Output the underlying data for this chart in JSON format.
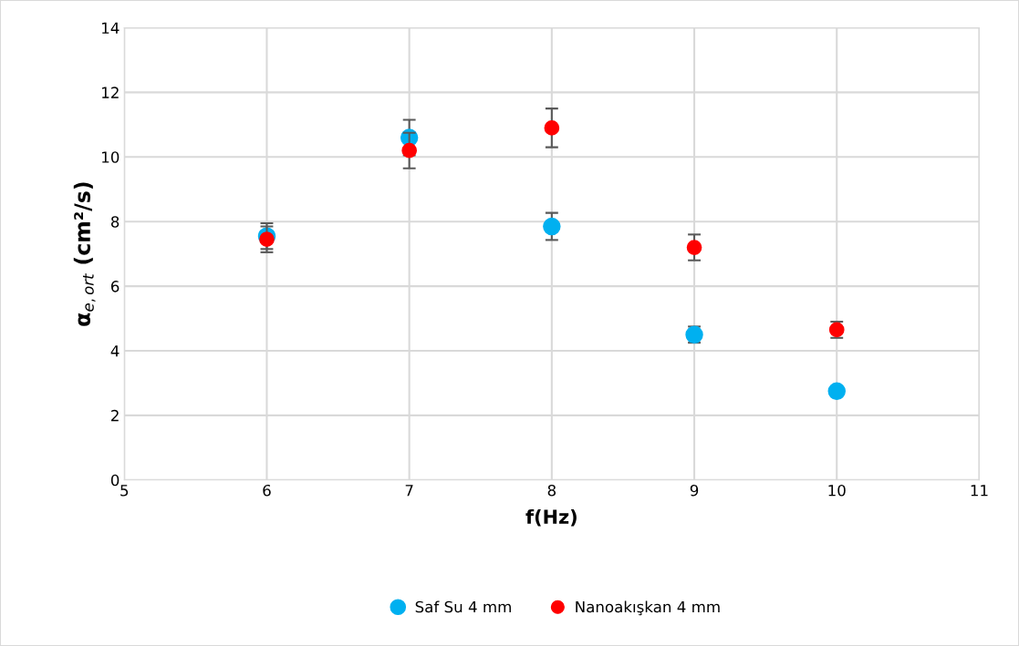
{
  "chart_data": {
    "type": "scatter",
    "xlabel": "f(Hz)",
    "ylabel": "α$_{e,ort}$ (cm²/s)",
    "x": [
      6,
      7,
      8,
      9,
      10
    ],
    "series": [
      {
        "name": "Saf Su 4 mm",
        "color": "#00b0f0",
        "values": [
          7.55,
          10.6,
          7.85,
          4.5,
          2.75
        ],
        "errors": [
          0.4,
          0.55,
          0.42,
          0.25,
          null
        ]
      },
      {
        "name": "Nanoakışkan 4 mm",
        "color": "#ff0000",
        "values": [
          7.45,
          10.2,
          10.9,
          7.2,
          4.65
        ],
        "errors": [
          0.4,
          0.55,
          0.6,
          0.4,
          0.25
        ]
      }
    ],
    "xlim": [
      5,
      11
    ],
    "xticks": [
      5,
      6,
      7,
      8,
      9,
      10,
      11
    ],
    "ylim": [
      0,
      14
    ],
    "yticks": [
      0,
      2,
      4,
      6,
      8,
      10,
      12,
      14
    ],
    "grid": true,
    "legend": "bottom",
    "marker": "circle"
  }
}
